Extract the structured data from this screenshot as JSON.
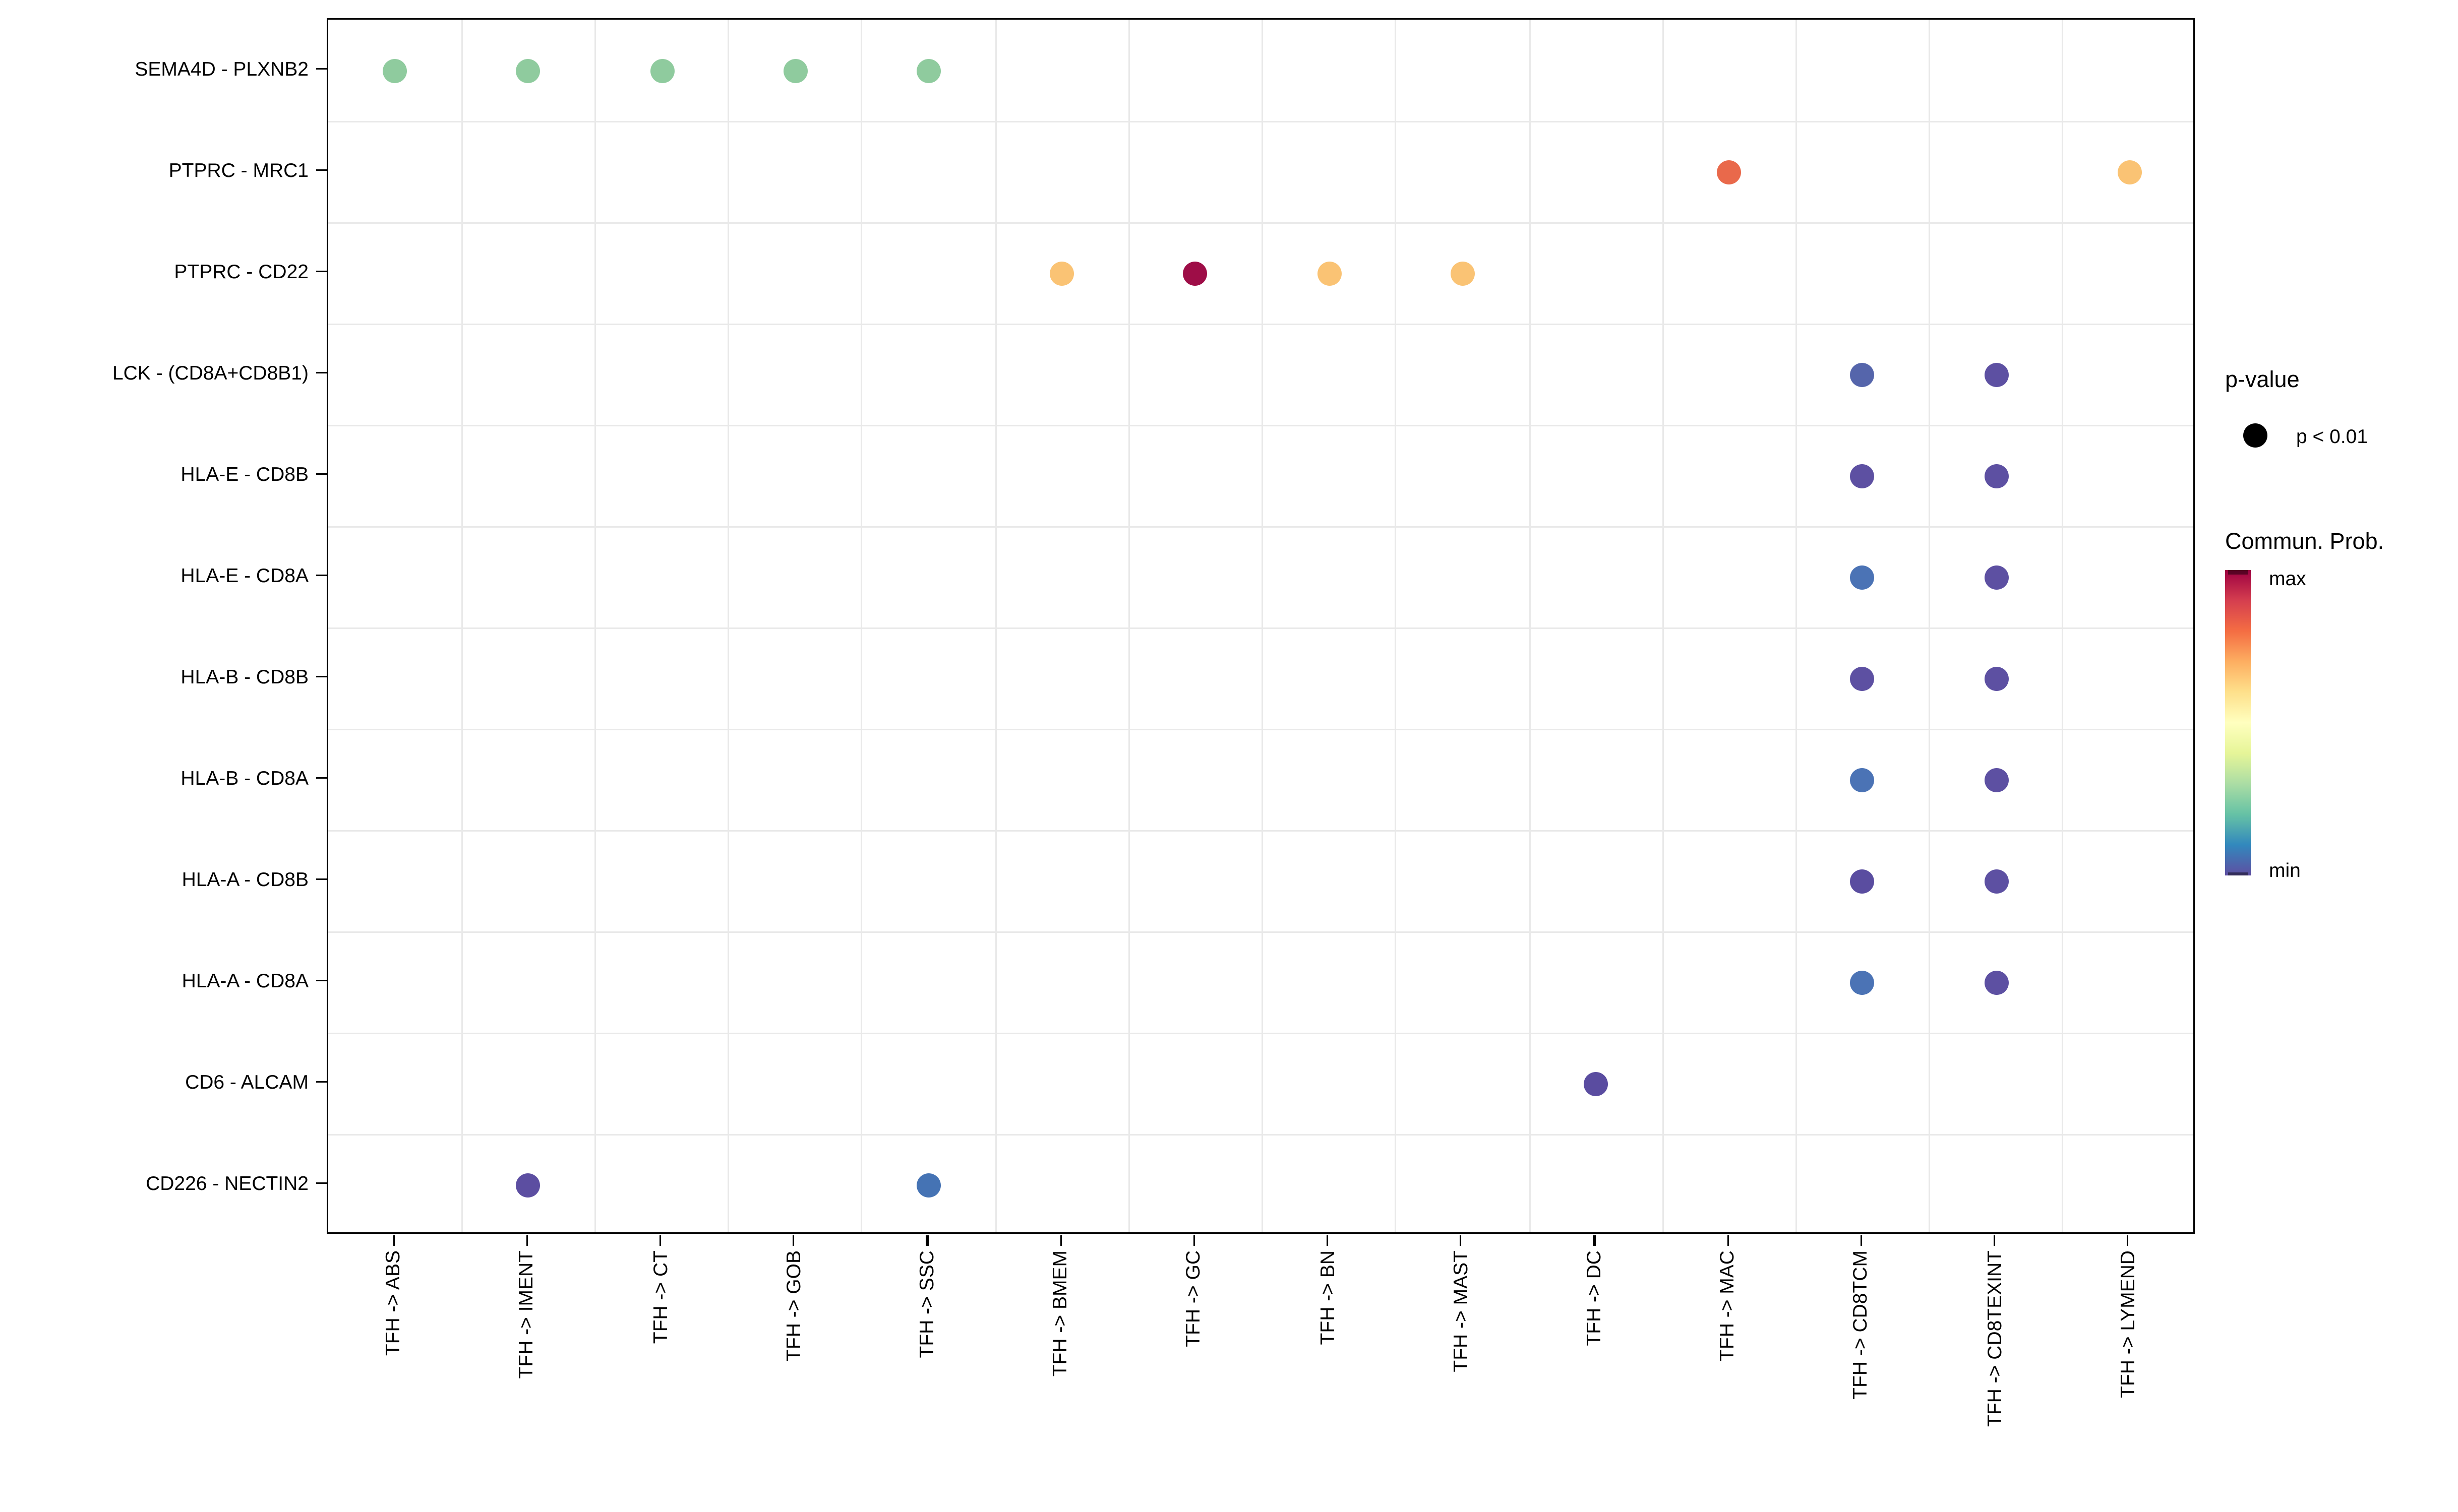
{
  "figure": {
    "background": "#FFFFFF",
    "panel_border_color": "#000000",
    "grid_color": "#E9E9E9",
    "tick_color": "#000000",
    "axis_text_color": "#000000"
  },
  "chart_data": {
    "type": "scatter",
    "subtype": "categorical dot plot (cell-cell communication bubble plot)",
    "title": "",
    "xlabel": "",
    "ylabel": "",
    "grid": "light gray gridlines at category boundaries",
    "legend_position": "right",
    "x_categories": [
      "TFH -> ABS",
      "TFH -> IMENT",
      "TFH -> CT",
      "TFH -> GOB",
      "TFH -> SSC",
      "TFH -> BMEM",
      "TFH -> GC",
      "TFH -> BN",
      "TFH -> MAST",
      "TFH -> DC",
      "TFH -> MAC",
      "TFH -> CD8TCM",
      "TFH -> CD8TEXINT",
      "TFH -> LYMEND"
    ],
    "y_categories_top_to_bottom": [
      "SEMA4D - PLXNB2",
      "PTPRC - MRC1",
      "PTPRC - CD22",
      "LCK - (CD8A+CD8B1)",
      "HLA-E - CD8B",
      "HLA-E - CD8A",
      "HLA-B - CD8B",
      "HLA-B - CD8A",
      "HLA-A - CD8B",
      "HLA-A - CD8A",
      "CD6 - ALCAM",
      "CD226 - NECTIN2"
    ],
    "points": [
      {
        "x": "TFH -> ABS",
        "y": "SEMA4D - PLXNB2",
        "color": "#8FCB9E",
        "p_value": "p < 0.01"
      },
      {
        "x": "TFH -> IMENT",
        "y": "SEMA4D - PLXNB2",
        "color": "#8FCB9E",
        "p_value": "p < 0.01"
      },
      {
        "x": "TFH -> CT",
        "y": "SEMA4D - PLXNB2",
        "color": "#8FCB9E",
        "p_value": "p < 0.01"
      },
      {
        "x": "TFH -> GOB",
        "y": "SEMA4D - PLXNB2",
        "color": "#8FCB9E",
        "p_value": "p < 0.01"
      },
      {
        "x": "TFH -> SSC",
        "y": "SEMA4D - PLXNB2",
        "color": "#8FCB9E",
        "p_value": "p < 0.01"
      },
      {
        "x": "TFH -> MAC",
        "y": "PTPRC - MRC1",
        "color": "#E9694B",
        "p_value": "p < 0.01"
      },
      {
        "x": "TFH -> LYMEND",
        "y": "PTPRC - MRC1",
        "color": "#FAC374",
        "p_value": "p < 0.01"
      },
      {
        "x": "TFH -> BMEM",
        "y": "PTPRC - CD22",
        "color": "#FAC374",
        "p_value": "p < 0.01"
      },
      {
        "x": "TFH -> GC",
        "y": "PTPRC - CD22",
        "color": "#9E0D47",
        "p_value": "p < 0.01"
      },
      {
        "x": "TFH -> BN",
        "y": "PTPRC - CD22",
        "color": "#FAC374",
        "p_value": "p < 0.01"
      },
      {
        "x": "TFH -> MAST",
        "y": "PTPRC - CD22",
        "color": "#FAC374",
        "p_value": "p < 0.01"
      },
      {
        "x": "TFH -> CD8TCM",
        "y": "LCK - (CD8A+CD8B1)",
        "color": "#5565AB",
        "p_value": "p < 0.01"
      },
      {
        "x": "TFH -> CD8TEXINT",
        "y": "LCK - (CD8A+CD8B1)",
        "color": "#5D50A2",
        "p_value": "p < 0.01"
      },
      {
        "x": "TFH -> CD8TCM",
        "y": "HLA-E - CD8B",
        "color": "#5D50A2",
        "p_value": "p < 0.01"
      },
      {
        "x": "TFH -> CD8TEXINT",
        "y": "HLA-E - CD8B",
        "color": "#5D50A2",
        "p_value": "p < 0.01"
      },
      {
        "x": "TFH -> CD8TCM",
        "y": "HLA-E - CD8A",
        "color": "#4B73B5",
        "p_value": "p < 0.01"
      },
      {
        "x": "TFH -> CD8TEXINT",
        "y": "HLA-E - CD8A",
        "color": "#5D50A2",
        "p_value": "p < 0.01"
      },
      {
        "x": "TFH -> CD8TCM",
        "y": "HLA-B - CD8B",
        "color": "#5D50A2",
        "p_value": "p < 0.01"
      },
      {
        "x": "TFH -> CD8TEXINT",
        "y": "HLA-B - CD8B",
        "color": "#5D50A2",
        "p_value": "p < 0.01"
      },
      {
        "x": "TFH -> CD8TCM",
        "y": "HLA-B - CD8A",
        "color": "#4B73B5",
        "p_value": "p < 0.01"
      },
      {
        "x": "TFH -> CD8TEXINT",
        "y": "HLA-B - CD8A",
        "color": "#5D50A2",
        "p_value": "p < 0.01"
      },
      {
        "x": "TFH -> CD8TCM",
        "y": "HLA-A - CD8B",
        "color": "#5A4DA0",
        "p_value": "p < 0.01"
      },
      {
        "x": "TFH -> CD8TEXINT",
        "y": "HLA-A - CD8B",
        "color": "#5D50A2",
        "p_value": "p < 0.01"
      },
      {
        "x": "TFH -> CD8TCM",
        "y": "HLA-A - CD8A",
        "color": "#4B73B5",
        "p_value": "p < 0.01"
      },
      {
        "x": "TFH -> CD8TEXINT",
        "y": "HLA-A - CD8A",
        "color": "#5D50A2",
        "p_value": "p < 0.01"
      },
      {
        "x": "TFH -> DC",
        "y": "CD6 - ALCAM",
        "color": "#5A4CA0",
        "p_value": "p < 0.01"
      },
      {
        "x": "TFH -> IMENT",
        "y": "CD226 - NECTIN2",
        "color": "#5C4EA1",
        "p_value": "p < 0.01"
      },
      {
        "x": "TFH -> SSC",
        "y": "CD226 - NECTIN2",
        "color": "#4573B4",
        "p_value": "p < 0.01"
      }
    ],
    "legend": {
      "p_value": {
        "title": "p-value",
        "items": [
          {
            "label": "p < 0.01",
            "dot_color": "#000000"
          }
        ]
      },
      "colorbar": {
        "title": "Commun. Prob.",
        "max_label": "max",
        "min_label": "min",
        "gradient_bottom_to_top": [
          "#5E4FA2",
          "#3288BD",
          "#66C2A5",
          "#ABDDA4",
          "#E6F598",
          "#FFFFBF",
          "#FEE08B",
          "#FDAE61",
          "#F46D43",
          "#D53E4F",
          "#9E0142"
        ]
      }
    }
  }
}
